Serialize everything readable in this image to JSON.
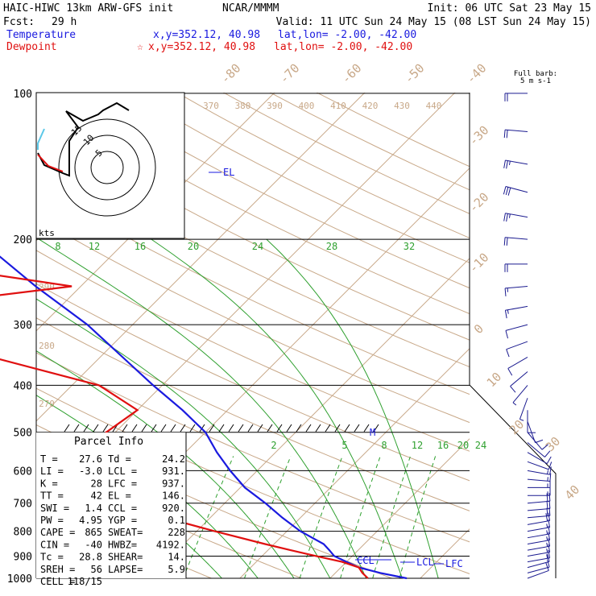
{
  "header": {
    "model": "HAIC-HIWC 13km ARW-GFS init",
    "org": "NCAR/MMMM",
    "init": "Init: 06 UTC Sat 23 May 15",
    "fcst_label": "Fcst:",
    "fcst_value": "29 h",
    "valid": "Valid: 11 UTC Sun 24 May 15 (08 LST Sun 24 May 15)",
    "temperature_label": "Temperature",
    "dewpoint_label": "Dewpoint",
    "temp_xy": "x,y=352.12, 40.98",
    "temp_latlon": "lat,lon= -2.00, -42.00",
    "dew_xy": "x,y=352.12, 40.98",
    "dew_latlon": "lat,lon= -2.00, -42.00",
    "full_barb": "Full barb:",
    "full_barb_unit": "5 m s-1"
  },
  "colors": {
    "temperature": "#1a1adf",
    "dewpoint": "#e01010",
    "isotherm": "#c8a888",
    "dry_adiabat": "#c8a888",
    "moist_adiabat": "#2fa02f",
    "mixing_ratio": "#2fa02f",
    "isobar": "#000000",
    "barb": "#1a1a8f"
  },
  "chart_data": {
    "type": "skew-t",
    "pressure_levels": [
      {
        "p": 100,
        "label": "100"
      },
      {
        "p": 200,
        "label": "200"
      },
      {
        "p": 300,
        "label": "300"
      },
      {
        "p": 400,
        "label": "400"
      },
      {
        "p": 500,
        "label": "500"
      },
      {
        "p": 600,
        "label": "600"
      },
      {
        "p": 700,
        "label": "700"
      },
      {
        "p": 800,
        "label": "800"
      },
      {
        "p": 900,
        "label": "900"
      },
      {
        "p": 1000,
        "label": "1000"
      }
    ],
    "isotherm_labels": [
      "-80",
      "-70",
      "-60",
      "-50",
      "-40",
      "-30",
      "-20",
      "-10",
      "0",
      "10",
      "20",
      "30",
      "40"
    ],
    "theta_labels_top": [
      "370",
      "380",
      "390",
      "400",
      "410",
      "420",
      "430",
      "440"
    ],
    "theta_labels_left": [
      "290",
      "280",
      "270"
    ],
    "moist_labels": [
      "8",
      "12",
      "16",
      "20",
      "24",
      "28",
      "32"
    ],
    "mixing_ratio_labels": [
      "2",
      "5",
      "8",
      "12",
      "16",
      "20",
      "24"
    ],
    "temperature_profile": [
      [
        1000,
        28.5
      ],
      [
        975,
        25.0
      ],
      [
        950,
        22.0
      ],
      [
        925,
        20.0
      ],
      [
        900,
        18.0
      ],
      [
        875,
        16.8
      ],
      [
        850,
        15.5
      ],
      [
        800,
        11.5
      ],
      [
        750,
        8.0
      ],
      [
        700,
        4.5
      ],
      [
        650,
        0.5
      ],
      [
        600,
        -3.0
      ],
      [
        550,
        -6.5
      ],
      [
        500,
        -10.0
      ],
      [
        450,
        -15.0
      ],
      [
        400,
        -21.0
      ],
      [
        350,
        -27.5
      ],
      [
        300,
        -35.0
      ],
      [
        250,
        -45.0
      ],
      [
        200,
        -56.5
      ],
      [
        175,
        -62.0
      ],
      [
        150,
        -66.0
      ],
      [
        125,
        -71.0
      ],
      [
        100,
        -76.0
      ]
    ],
    "dewpoint_profile": [
      [
        1000,
        24.2
      ],
      [
        975,
        23.0
      ],
      [
        950,
        22.0
      ],
      [
        925,
        19.5
      ],
      [
        900,
        16.0
      ],
      [
        875,
        12.5
      ],
      [
        850,
        9.0
      ],
      [
        800,
        2.0
      ],
      [
        750,
        -5.0
      ],
      [
        700,
        -12.0
      ],
      [
        650,
        -12.5
      ],
      [
        600,
        -11.5
      ],
      [
        550,
        -16.0
      ],
      [
        500,
        -21.0
      ],
      [
        450,
        -20.0
      ],
      [
        400,
        -27.0
      ],
      [
        350,
        -42.0
      ],
      [
        300,
        -53.0
      ],
      [
        275,
        -57.0
      ],
      [
        250,
        -41.0
      ],
      [
        225,
        -60.0
      ],
      [
        200,
        -75.0
      ],
      [
        175,
        -78.0
      ],
      [
        150,
        -83.0
      ],
      [
        125,
        -85.0
      ],
      [
        100,
        -84.0
      ]
    ],
    "markers": [
      {
        "label": "EL",
        "p": 146
      },
      {
        "label": "M",
        "p": 500
      },
      {
        "label": "LCL",
        "p": 931
      },
      {
        "label": "LFC",
        "p": 937
      },
      {
        "label": "CCL",
        "p": 920
      }
    ],
    "hodograph": {
      "rings": [
        "5",
        "10",
        "15"
      ],
      "unit": "kts"
    },
    "parcel_info": {
      "title": "Parcel Info",
      "rows": [
        [
          "T   =",
          "27.6",
          "Td  =",
          "24.2"
        ],
        [
          "LI  =",
          "-3.0",
          "LCL =",
          "931."
        ],
        [
          "K   =",
          "28",
          "LFC =",
          "937."
        ],
        [
          "TT  =",
          "42",
          "EL  =",
          "146."
        ],
        [
          "SWI =",
          "1.4",
          "CCL =",
          "920."
        ],
        [
          "PW  =",
          "4.95",
          "YGP =",
          "0.1"
        ],
        [
          "CAPE =",
          "865",
          "SWEAT=",
          "228"
        ],
        [
          "CIN  =",
          "-40",
          "HWBZ=",
          "4192."
        ],
        [
          "Tc  =",
          "28.8",
          "SHEAR=",
          "14."
        ],
        [
          "SREH =",
          "56",
          "LAPSE=",
          "5.9"
        ],
        [
          "CELL =",
          "118/15",
          "",
          ""
        ]
      ]
    },
    "winds": [
      [
        100,
        270,
        10
      ],
      [
        120,
        275,
        12
      ],
      [
        140,
        280,
        14
      ],
      [
        160,
        285,
        15
      ],
      [
        180,
        280,
        14
      ],
      [
        200,
        275,
        12
      ],
      [
        225,
        270,
        10
      ],
      [
        250,
        265,
        9
      ],
      [
        275,
        260,
        8
      ],
      [
        300,
        255,
        7
      ],
      [
        325,
        250,
        6
      ],
      [
        350,
        240,
        5
      ],
      [
        375,
        230,
        5
      ],
      [
        400,
        220,
        4
      ],
      [
        425,
        200,
        4
      ],
      [
        450,
        180,
        5
      ],
      [
        475,
        160,
        5
      ],
      [
        500,
        140,
        6
      ],
      [
        525,
        130,
        6
      ],
      [
        550,
        120,
        7
      ],
      [
        575,
        110,
        7
      ],
      [
        600,
        100,
        8
      ],
      [
        625,
        95,
        8
      ],
      [
        650,
        90,
        9
      ],
      [
        675,
        90,
        9
      ],
      [
        700,
        85,
        10
      ],
      [
        725,
        85,
        10
      ],
      [
        750,
        85,
        10
      ],
      [
        775,
        80,
        10
      ],
      [
        800,
        80,
        9
      ],
      [
        825,
        80,
        9
      ],
      [
        850,
        80,
        9
      ],
      [
        875,
        80,
        9
      ],
      [
        900,
        80,
        8
      ],
      [
        925,
        80,
        8
      ],
      [
        950,
        75,
        7
      ],
      [
        975,
        75,
        6
      ],
      [
        1000,
        70,
        5
      ]
    ]
  }
}
